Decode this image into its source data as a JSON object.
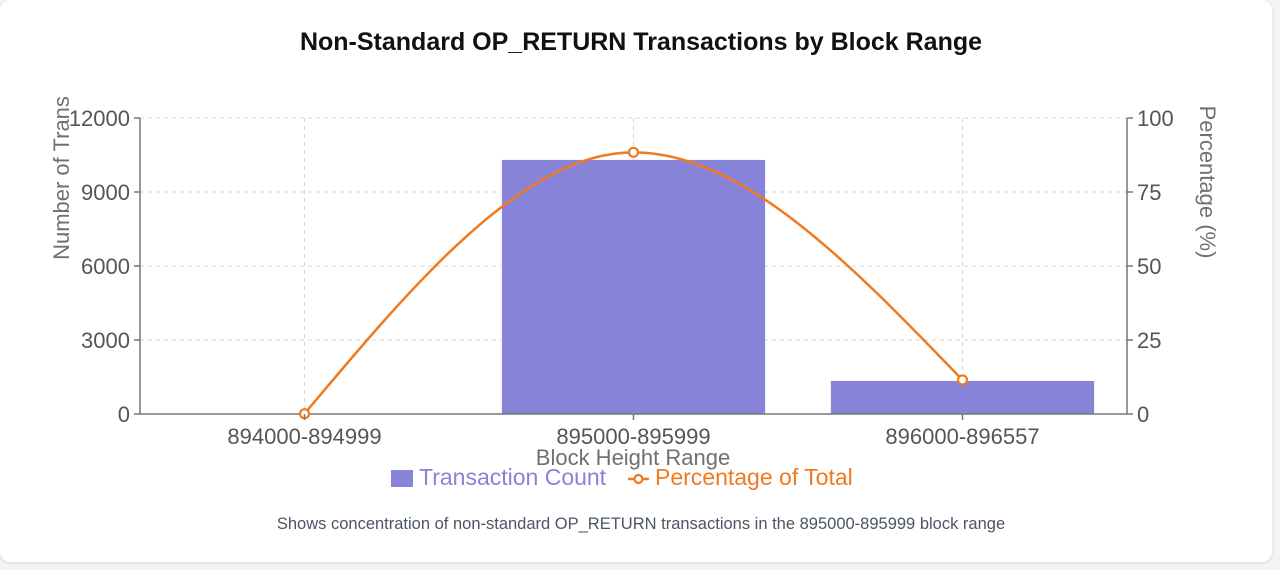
{
  "title": "Non-Standard OP_RETURN Transactions by Block Range",
  "caption": "Shows concentration of non-standard OP_RETURN transactions in the 895000-895999 block range",
  "colors": {
    "bar": "#8783d9",
    "line": "#f07a20",
    "grid": "#d4d4d4",
    "axis": "#777777",
    "tick_text": "#555555"
  },
  "chart_data": {
    "type": "bar",
    "title": "Non-Standard OP_RETURN Transactions by Block Range",
    "xlabel": "Block Height Range",
    "ylabel": "Number of Trans",
    "y2label": "Percentage (%)",
    "categories": [
      "894000-894999",
      "895000-895999",
      "896000-896557"
    ],
    "ylim": [
      0,
      12000
    ],
    "yticks": [
      "0",
      "3000",
      "6000",
      "9000",
      "12000"
    ],
    "y2lim": [
      0,
      100
    ],
    "y2ticks": [
      "0",
      "25",
      "50",
      "75",
      "100"
    ],
    "grid": true,
    "legend": "bottom-center",
    "series": [
      {
        "name": "Transaction Count",
        "type": "bar",
        "axis": "left",
        "values": [
          10,
          10300,
          1340
        ]
      },
      {
        "name": "Percentage of Total",
        "type": "line",
        "axis": "right",
        "values": [
          0.1,
          88.4,
          11.5
        ]
      }
    ]
  }
}
